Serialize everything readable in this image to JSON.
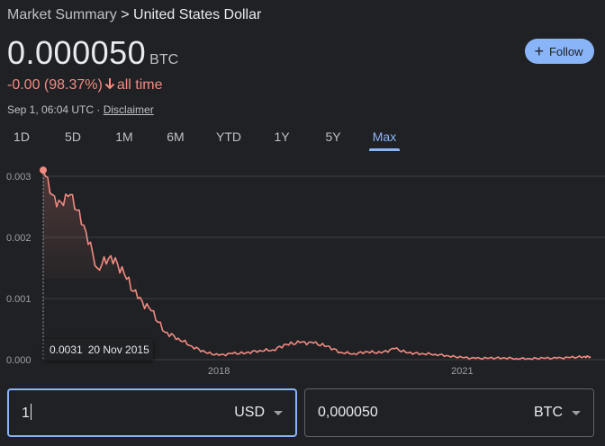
{
  "breadcrumb": {
    "parent": "Market Summary",
    "separator": " > ",
    "current": "United States Dollar"
  },
  "price": {
    "value": "0.000050",
    "unit": "BTC"
  },
  "change": {
    "text": "-0.00 (98.37%)",
    "period": "all time",
    "color": "#f28b82"
  },
  "meta": {
    "timestamp": "Sep 1, 06:04 UTC · ",
    "disclaimer": "Disclaimer"
  },
  "follow": {
    "label": "Follow",
    "icon": "plus-icon",
    "bg": "#8ab4f8"
  },
  "ranges": {
    "items": [
      "1D",
      "5D",
      "1M",
      "6M",
      "YTD",
      "1Y",
      "5Y",
      "Max"
    ],
    "active": "Max",
    "accent": "#8ab4f8"
  },
  "tooltip": {
    "value": "0.0031",
    "date": "20 Nov 2015"
  },
  "converter": {
    "from": {
      "value": "1",
      "currency": "USD"
    },
    "to": {
      "value": "0,000050",
      "currency": "BTC"
    }
  },
  "chart_data": {
    "type": "area",
    "title": "",
    "xlabel": "",
    "ylabel": "",
    "y_ticks": [
      "0.003",
      "0.002",
      "0.001",
      "0.000"
    ],
    "x_ticks": [
      "2018",
      "2021"
    ],
    "ylim": [
      0,
      0.003
    ],
    "grid": true,
    "line_color": "#f28b82",
    "x": [
      "2015-11",
      "2016-01",
      "2016-03",
      "2016-05",
      "2016-07",
      "2016-09",
      "2016-11",
      "2017-01",
      "2017-03",
      "2017-05",
      "2017-07",
      "2017-09",
      "2017-11",
      "2018-01",
      "2018-03",
      "2018-05",
      "2018-07",
      "2018-09",
      "2018-11",
      "2019-01",
      "2019-03",
      "2019-05",
      "2019-07",
      "2019-09",
      "2019-11",
      "2020-01",
      "2020-03",
      "2020-05",
      "2020-07",
      "2020-09",
      "2020-11",
      "2021-01",
      "2021-03",
      "2021-05",
      "2021-07",
      "2021-09",
      "2021-11",
      "2022-01",
      "2022-03",
      "2022-05",
      "2022-07",
      "2022-08"
    ],
    "values": [
      0.0031,
      0.0025,
      0.0027,
      0.0022,
      0.0015,
      0.0017,
      0.0014,
      0.001,
      0.0008,
      0.00045,
      0.00035,
      0.00022,
      0.00012,
      7e-05,
      0.0001,
      0.00011,
      0.00015,
      0.00016,
      0.00025,
      0.00028,
      0.00027,
      0.00022,
      0.00012,
      0.0001,
      0.00013,
      0.00011,
      0.00018,
      0.00011,
      0.0001,
      9e-05,
      6e-05,
      3.5e-05,
      2e-05,
      2.5e-05,
      3e-05,
      2e-05,
      1.8e-05,
      2.5e-05,
      2.3e-05,
      3.5e-05,
      4.8e-05,
      5e-05
    ]
  }
}
